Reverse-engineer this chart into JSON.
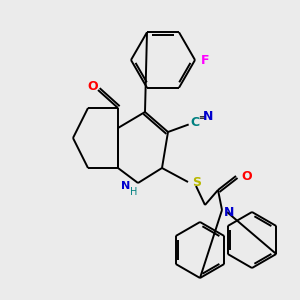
{
  "background_color": "#ebebeb",
  "bond_color": "#000000",
  "atom_colors": {
    "O": "#ff0000",
    "N": "#0000cd",
    "S": "#b8b800",
    "F": "#ff00ff",
    "CN_C": "#008080",
    "CN_N": "#0000cd",
    "NH_N": "#008080",
    "NH_H": "#008080"
  },
  "figsize": [
    3.0,
    3.0
  ],
  "dpi": 100
}
